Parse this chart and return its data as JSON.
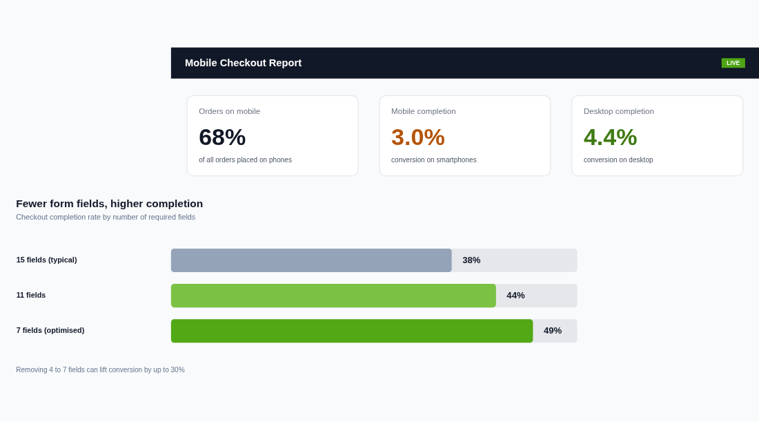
{
  "chart_data": [
    {
      "type": "other",
      "title": "Mobile Checkout Report",
      "annotations": [
        "LIVE"
      ]
    },
    {
      "type": "other",
      "title": "Orders on mobile",
      "annotations": [
        "68%",
        "of all orders placed on phones"
      ],
      "color": "#111827"
    },
    {
      "type": "other",
      "title": "Mobile completion",
      "annotations": [
        "3.0%",
        "conversion on smartphones"
      ],
      "color": "#b45309"
    },
    {
      "type": "other",
      "title": "Desktop completion",
      "annotations": [
        "4.4%",
        "conversion on desktop"
      ],
      "color": "#3f7a12"
    },
    {
      "type": "bar",
      "orientation": "horizontal",
      "title": "Fewer form fields, higher completion",
      "subtitle": "Checkout completion rate by number of required fields",
      "categories": [
        "15 fields (typical)",
        "11 fields",
        "7 fields (optimised)"
      ],
      "values": [
        38,
        44,
        49
      ],
      "colors": [
        "#94a3b8",
        "#7bc244",
        "#52a815"
      ],
      "value_labels": [
        "38%",
        "44%",
        "49%"
      ],
      "xlim": [
        0,
        55
      ],
      "tick_labels": false,
      "annotations": [
        "Removing 4 to 7 fields can lift conversion by up to 30%"
      ]
    }
  ]
}
